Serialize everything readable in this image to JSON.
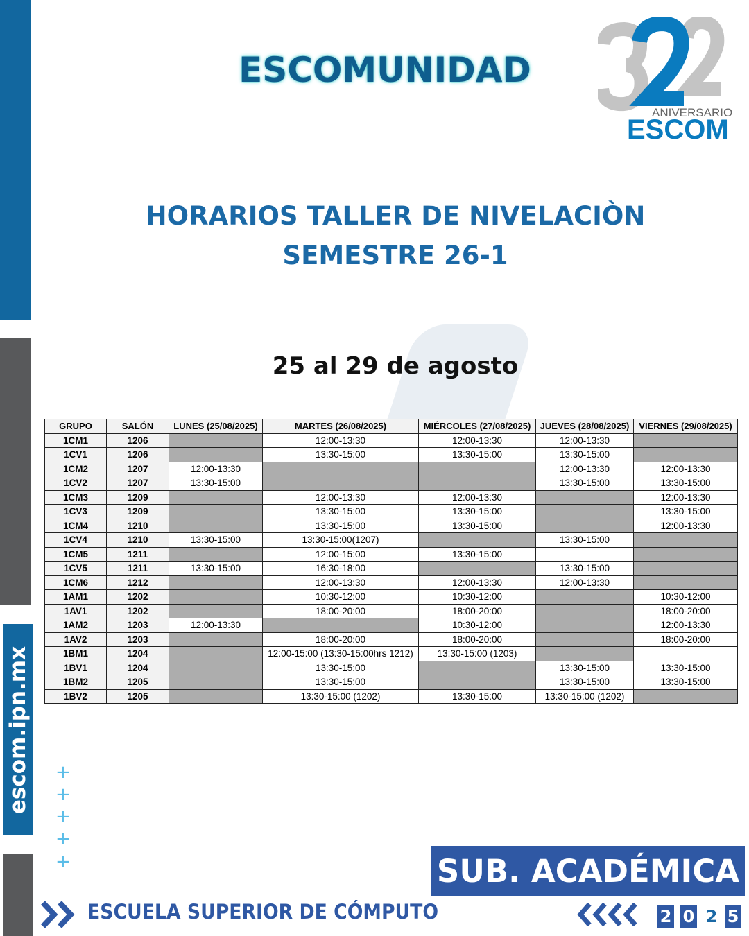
{
  "header": {
    "brand": "ESCOMUNIDAD",
    "logo": {
      "number": "32",
      "subtitle": "ANIVERSARIO",
      "name": "ESCOM"
    }
  },
  "title": {
    "line1": "HORARIOS TALLER DE NIVELACIÒN",
    "line2": "SEMESTRE 26-1"
  },
  "date_range": "25 al 29 de agosto",
  "sidebar_url": "escom.ipn.mx",
  "colors": {
    "blue": "#12679f",
    "gray": "#58595b",
    "accent": "#2f58a4",
    "unavailable_cell": "#adadad"
  },
  "table": {
    "headers": [
      "GRUPO",
      "SALÓN",
      "LUNES (25/08/2025)",
      "MARTES (26/08/2025)",
      "MIÉRCOLES (27/08/2025)",
      "JUEVES (28/08/2025)",
      "VIERNES (29/08/2025)"
    ],
    "legend_note": "null = shaded gray cell (no session)",
    "rows": [
      {
        "grupo": "1CM1",
        "salon": "1206",
        "days": [
          null,
          "12:00-13:30",
          "12:00-13:30",
          "12:00-13:30",
          null
        ]
      },
      {
        "grupo": "1CV1",
        "salon": "1206",
        "days": [
          null,
          "13:30-15:00",
          "13:30-15:00",
          "13:30-15:00",
          null
        ]
      },
      {
        "grupo": "1CM2",
        "salon": "1207",
        "days": [
          "12:00-13:30",
          null,
          null,
          "12:00-13:30",
          "12:00-13:30"
        ]
      },
      {
        "grupo": "1CV2",
        "salon": "1207",
        "days": [
          "13:30-15:00",
          null,
          null,
          "13:30-15:00",
          "13:30-15:00"
        ]
      },
      {
        "grupo": "1CM3",
        "salon": "1209",
        "days": [
          null,
          "12:00-13:30",
          "12:00-13:30",
          null,
          "12:00-13:30"
        ]
      },
      {
        "grupo": "1CV3",
        "salon": "1209",
        "days": [
          null,
          "13:30-15:00",
          "13:30-15:00",
          null,
          "13:30-15:00"
        ]
      },
      {
        "grupo": "1CM4",
        "salon": "1210",
        "days": [
          null,
          "13:30-15:00",
          "13:30-15:00",
          null,
          "12:00-13:30"
        ]
      },
      {
        "grupo": "1CV4",
        "salon": "1210",
        "days": [
          "13:30-15:00",
          "13:30-15:00(1207)",
          null,
          "13:30-15:00",
          null
        ]
      },
      {
        "grupo": "1CM5",
        "salon": "1211",
        "days": [
          null,
          "12:00-15:00",
          "13:30-15:00",
          "",
          null
        ]
      },
      {
        "grupo": "1CV5",
        "salon": "1211",
        "days": [
          "13:30-15:00",
          "16:30-18:00",
          null,
          "13:30-15:00",
          null
        ]
      },
      {
        "grupo": "1CM6",
        "salon": "1212",
        "days": [
          null,
          "12:00-13:30",
          "12:00-13:30",
          "12:00-13:30",
          null
        ]
      },
      {
        "grupo": "1AM1",
        "salon": "1202",
        "days": [
          null,
          "10:30-12:00",
          "10:30-12:00",
          null,
          "10:30-12:00"
        ]
      },
      {
        "grupo": "1AV1",
        "salon": "1202",
        "days": [
          null,
          "18:00-20:00",
          "18:00-20:00",
          null,
          "18:00-20:00"
        ]
      },
      {
        "grupo": "1AM2",
        "salon": "1203",
        "days": [
          "12:00-13:30",
          null,
          "10:30-12:00",
          null,
          "12:00-13:30"
        ]
      },
      {
        "grupo": "1AV2",
        "salon": "1203",
        "days": [
          null,
          "18:00-20:00",
          "18:00-20:00",
          null,
          "18:00-20:00"
        ]
      },
      {
        "grupo": "1BM1",
        "salon": "1204",
        "days": [
          null,
          "12:00-15:00 (13:30-15:00hrs 1212)",
          "13:30-15:00 (1203)",
          null,
          ""
        ]
      },
      {
        "grupo": "1BV1",
        "salon": "1204",
        "days": [
          null,
          "13:30-15:00",
          null,
          "13:30-15:00",
          "13:30-15:00"
        ]
      },
      {
        "grupo": "1BM2",
        "salon": "1205",
        "days": [
          null,
          "13:30-15:00",
          null,
          "13:30-15:00",
          "13:30-15:00"
        ]
      },
      {
        "grupo": "1BV2",
        "salon": "1205",
        "days": [
          null,
          "13:30-15:00 (1202)",
          "13:30-15:00",
          "13:30-15:00 (1202)",
          null
        ]
      }
    ]
  },
  "footer": {
    "department": "SUB. ACADÉMICA",
    "school": "ESCUELA SUPERIOR DE CÓMPUTO",
    "year_digits": [
      "2",
      "0",
      "2",
      "5"
    ]
  }
}
